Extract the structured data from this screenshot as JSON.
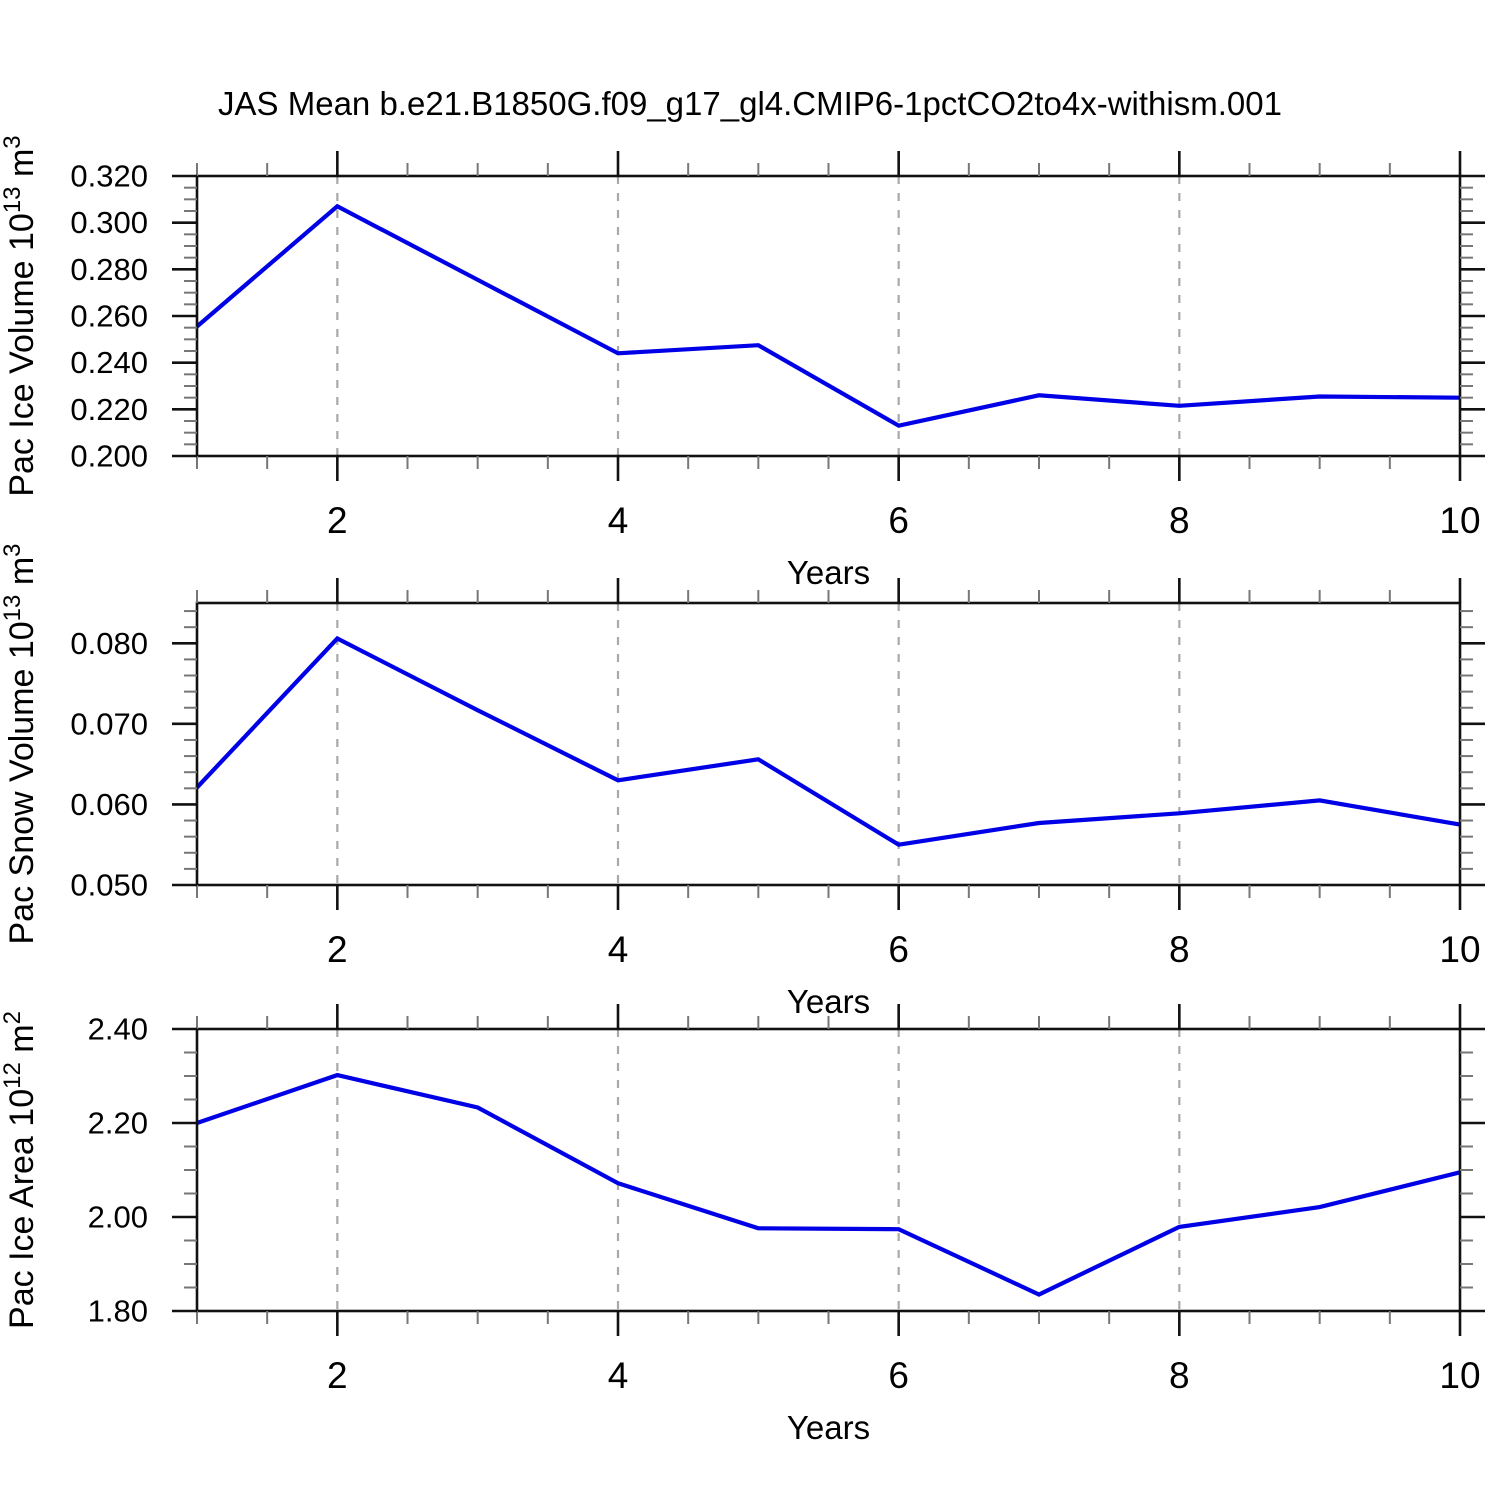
{
  "title": "JAS Mean b.e21.B1850G.f09_g17_gl4.CMIP6-1pctCO2to4x-withism.001",
  "chart_data": {
    "type": "line",
    "x": [
      1,
      2,
      3,
      4,
      5,
      6,
      7,
      8,
      9,
      10
    ],
    "xlabel": "Years",
    "xlim": [
      1,
      10
    ],
    "x_major_ticks": [
      2,
      4,
      6,
      8,
      10
    ],
    "x_tick_labels": [
      "2",
      "4",
      "6",
      "8",
      "10"
    ],
    "x_minor_step": 0.5,
    "x_gridlines": [
      2,
      4,
      6,
      8
    ],
    "grid": "vertical dashed gridlines at major x ticks only",
    "legend": "none",
    "line_color": "#0000e6",
    "gridline_color": "#a9a9a9",
    "frame_color": "#111111",
    "minor_tick_color": "#777777",
    "panels": [
      {
        "name": "pac-ice-volume",
        "ylabel": "Pac Ice Volume 10^13 m^3",
        "ylabel_parts": [
          {
            "t": "Pac Ice Volume 10",
            "sup": false
          },
          {
            "t": "13",
            "sup": true
          },
          {
            "t": " m",
            "sup": false
          },
          {
            "t": "3",
            "sup": true
          }
        ],
        "ylim": [
          0.2,
          0.32
        ],
        "y_major_ticks": [
          0.2,
          0.22,
          0.24,
          0.26,
          0.28,
          0.3,
          0.32
        ],
        "y_tick_labels": [
          "0.200",
          "0.220",
          "0.240",
          "0.260",
          "0.280",
          "0.300",
          "0.320"
        ],
        "y_minor_step": 0.005,
        "values": [
          0.2555,
          0.307,
          0.2755,
          0.244,
          0.2475,
          0.213,
          0.226,
          0.2215,
          0.2255,
          0.225
        ]
      },
      {
        "name": "pac-snow-volume",
        "ylabel": "Pac Snow Volume 10^13 m^3",
        "ylabel_parts": [
          {
            "t": "Pac Snow Volume 10",
            "sup": false
          },
          {
            "t": "13",
            "sup": true
          },
          {
            "t": " m",
            "sup": false
          },
          {
            "t": "3",
            "sup": true
          }
        ],
        "ylim": [
          0.05,
          0.085
        ],
        "y_major_ticks": [
          0.05,
          0.06,
          0.07,
          0.08
        ],
        "y_tick_labels": [
          "0.050",
          "0.060",
          "0.070",
          "0.080"
        ],
        "y_minor_step": 0.002,
        "values": [
          0.0621,
          0.0806,
          0.0717,
          0.063,
          0.0656,
          0.055,
          0.0577,
          0.0589,
          0.0605,
          0.0575
        ]
      },
      {
        "name": "pac-ice-area",
        "ylabel": "Pac Ice Area 10^12 m^2",
        "ylabel_parts": [
          {
            "t": "Pac Ice Area 10",
            "sup": false
          },
          {
            "t": "12",
            "sup": true
          },
          {
            "t": " m",
            "sup": false
          },
          {
            "t": "2",
            "sup": true
          }
        ],
        "ylim": [
          1.8,
          2.4
        ],
        "y_major_ticks": [
          1.8,
          2.0,
          2.2,
          2.4
        ],
        "y_tick_labels": [
          "1.80",
          "2.00",
          "2.20",
          "2.40"
        ],
        "y_minor_step": 0.05,
        "values": [
          2.2,
          2.302,
          2.233,
          2.072,
          1.976,
          1.974,
          1.835,
          1.979,
          2.021,
          2.095
        ]
      }
    ]
  }
}
